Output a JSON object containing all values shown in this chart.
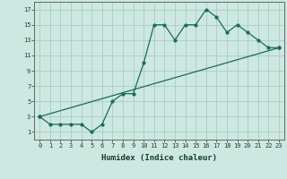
{
  "xlabel": "Humidex (Indice chaleur)",
  "bg_color": "#cce8e0",
  "grid_color": "#aaccc4",
  "line_color": "#1a6b5a",
  "line1_x": [
    0,
    1,
    2,
    3,
    4,
    5,
    6,
    7,
    8,
    9,
    10,
    11,
    12,
    13,
    14,
    15,
    16,
    17,
    18,
    19,
    20,
    21,
    22,
    23
  ],
  "line1_y": [
    3,
    2,
    2,
    2,
    2,
    1,
    2,
    5,
    6,
    6,
    10,
    15,
    15,
    13,
    15,
    15,
    17,
    16,
    14,
    15,
    14,
    13,
    12,
    12
  ],
  "line2_x": [
    0,
    23
  ],
  "line2_y": [
    3,
    12
  ],
  "xlim": [
    -0.5,
    23.5
  ],
  "ylim": [
    0,
    18
  ],
  "xticks": [
    0,
    1,
    2,
    3,
    4,
    5,
    6,
    7,
    8,
    9,
    10,
    11,
    12,
    13,
    14,
    15,
    16,
    17,
    18,
    19,
    20,
    21,
    22,
    23
  ],
  "yticks": [
    1,
    3,
    5,
    7,
    9,
    11,
    13,
    15,
    17
  ],
  "xlabel_fontsize": 6.5,
  "tick_fontsize": 5.0
}
